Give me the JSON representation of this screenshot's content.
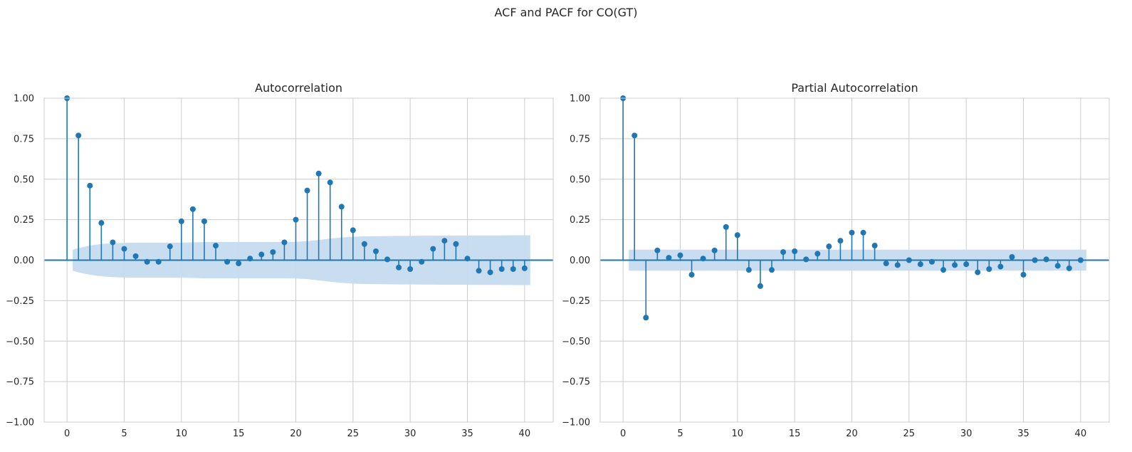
{
  "figure": {
    "suptitle": "ACF and PACF for CO(GT)"
  },
  "colors": {
    "stem": "#1f77b4",
    "band": "#c6dbef",
    "grid": "#cccccc",
    "spine": "#cccccc"
  },
  "chart_data": [
    {
      "type": "stem",
      "title": "Autocorrelation",
      "xlim": [
        -2,
        42.5
      ],
      "ylim": [
        -1.0,
        1.0
      ],
      "xticks": [
        0,
        5,
        10,
        15,
        20,
        25,
        30,
        35,
        40
      ],
      "yticks": [
        -1.0,
        -0.75,
        -0.5,
        -0.25,
        0.0,
        0.25,
        0.5,
        0.75,
        1.0
      ],
      "xticklabels": [
        "0",
        "5",
        "10",
        "15",
        "20",
        "25",
        "30",
        "35",
        "40"
      ],
      "yticklabels": [
        "−1.00",
        "−0.75",
        "−0.50",
        "−0.25",
        "0.00",
        "0.25",
        "0.50",
        "0.75",
        "1.00"
      ],
      "grid": true,
      "x": [
        0,
        1,
        2,
        3,
        4,
        5,
        6,
        7,
        8,
        9,
        10,
        11,
        12,
        13,
        14,
        15,
        16,
        17,
        18,
        19,
        20,
        21,
        22,
        23,
        24,
        25,
        26,
        27,
        28,
        29,
        30,
        31,
        32,
        33,
        34,
        35,
        36,
        37,
        38,
        39,
        40
      ],
      "values": [
        1.0,
        0.77,
        0.46,
        0.23,
        0.11,
        0.07,
        0.025,
        -0.01,
        -0.01,
        0.085,
        0.24,
        0.315,
        0.24,
        0.09,
        -0.01,
        -0.02,
        0.01,
        0.035,
        0.05,
        0.11,
        0.25,
        0.43,
        0.535,
        0.48,
        0.33,
        0.185,
        0.1,
        0.055,
        0.005,
        -0.045,
        -0.055,
        -0.01,
        0.07,
        0.12,
        0.1,
        0.01,
        -0.065,
        -0.075,
        -0.055,
        -0.055,
        -0.05
      ],
      "confidence_band": {
        "x": [
          0.5,
          1,
          2,
          3,
          4,
          5,
          6,
          7,
          8,
          9,
          10,
          11,
          12,
          13,
          14,
          15,
          16,
          17,
          18,
          19,
          20,
          21,
          22,
          23,
          24,
          25,
          26,
          27,
          28,
          29,
          30,
          31,
          32,
          33,
          34,
          35,
          36,
          37,
          38,
          39,
          40,
          40.5
        ],
        "upper": [
          0.065,
          0.075,
          0.09,
          0.1,
          0.105,
          0.107,
          0.108,
          0.108,
          0.108,
          0.108,
          0.108,
          0.11,
          0.112,
          0.112,
          0.112,
          0.112,
          0.112,
          0.112,
          0.112,
          0.112,
          0.113,
          0.117,
          0.125,
          0.133,
          0.14,
          0.145,
          0.147,
          0.148,
          0.149,
          0.15,
          0.15,
          0.151,
          0.151,
          0.152,
          0.152,
          0.152,
          0.153,
          0.153,
          0.153,
          0.154,
          0.154,
          0.154
        ]
      }
    },
    {
      "type": "stem",
      "title": "Partial Autocorrelation",
      "xlim": [
        -2,
        42.5
      ],
      "ylim": [
        -1.0,
        1.0
      ],
      "xticks": [
        0,
        5,
        10,
        15,
        20,
        25,
        30,
        35,
        40
      ],
      "yticks": [
        -1.0,
        -0.75,
        -0.5,
        -0.25,
        0.0,
        0.25,
        0.5,
        0.75,
        1.0
      ],
      "xticklabels": [
        "0",
        "5",
        "10",
        "15",
        "20",
        "25",
        "30",
        "35",
        "40"
      ],
      "yticklabels": [
        "−1.00",
        "−0.75",
        "−0.50",
        "−0.25",
        "0.00",
        "0.25",
        "0.50",
        "0.75",
        "1.00"
      ],
      "grid": true,
      "x": [
        0,
        1,
        2,
        3,
        4,
        5,
        6,
        7,
        8,
        9,
        10,
        11,
        12,
        13,
        14,
        15,
        16,
        17,
        18,
        19,
        20,
        21,
        22,
        23,
        24,
        25,
        26,
        27,
        28,
        29,
        30,
        31,
        32,
        33,
        34,
        35,
        36,
        37,
        38,
        39,
        40
      ],
      "values": [
        1.0,
        0.77,
        -0.355,
        0.06,
        0.015,
        0.03,
        -0.09,
        0.01,
        0.06,
        0.205,
        0.155,
        -0.06,
        -0.16,
        -0.06,
        0.05,
        0.055,
        0.005,
        0.04,
        0.085,
        0.12,
        0.17,
        0.17,
        0.09,
        -0.02,
        -0.03,
        0.0,
        -0.025,
        -0.01,
        -0.06,
        -0.03,
        -0.025,
        -0.075,
        -0.055,
        -0.04,
        0.02,
        -0.09,
        0.0,
        0.005,
        -0.035,
        -0.05,
        0.0
      ],
      "confidence_band": {
        "x": [
          0.5,
          40.5
        ],
        "upper": [
          0.065,
          0.065
        ]
      }
    }
  ]
}
